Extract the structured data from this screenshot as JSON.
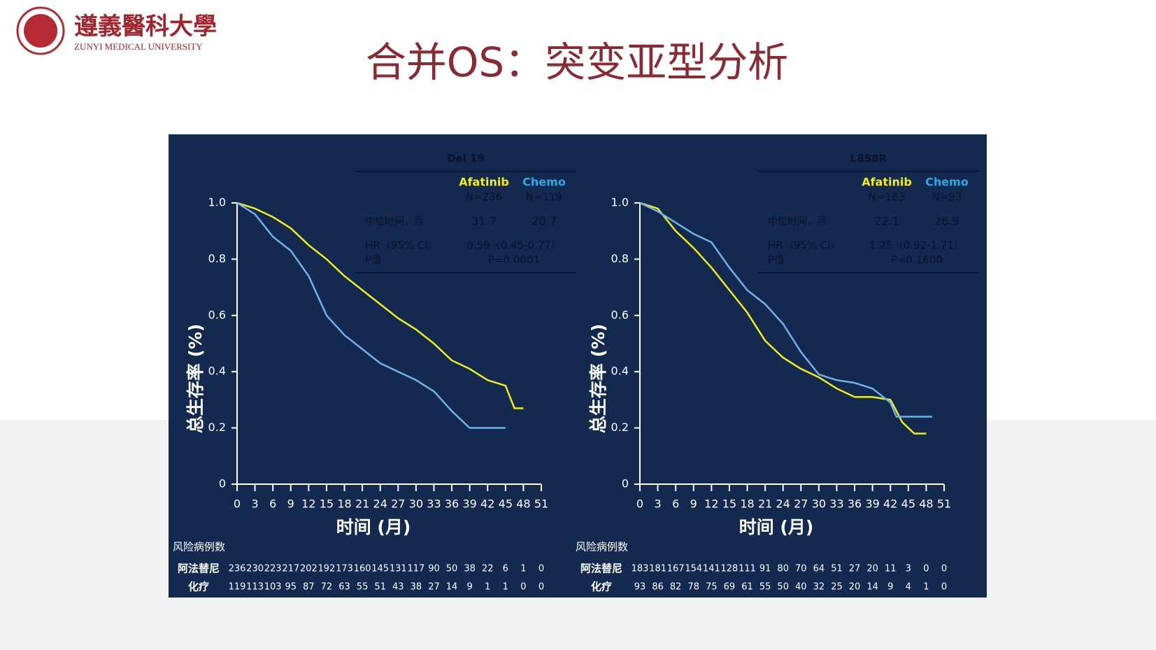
{
  "header": {
    "logo_cn": "遵義醫科大學",
    "logo_en": "ZUNYI MEDICAL UNIVERSITY",
    "title": "合并OS：突变亚型分析"
  },
  "chart_data": [
    {
      "type": "line",
      "title": "Del 19",
      "x_label": "时间 (月)",
      "y_label": "总生存率 (%)",
      "xlim": [
        0,
        51
      ],
      "xticks": [
        0,
        3,
        6,
        9,
        12,
        15,
        18,
        21,
        24,
        27,
        30,
        33,
        36,
        39,
        42,
        45,
        48,
        51
      ],
      "ylim": [
        0,
        1
      ],
      "yticks": [
        0,
        0.2,
        0.4,
        0.6,
        0.8,
        {
          "value": 1,
          "label": "1.0"
        }
      ],
      "series": [
        {
          "name": "Afatinib",
          "color": "#f2ec1c",
          "n_label": "N=236",
          "x": [
            0,
            3,
            6,
            9,
            12,
            15,
            18,
            21,
            24,
            27,
            30,
            33,
            36,
            39,
            42,
            45,
            46.5,
            48
          ],
          "values": [
            1,
            0.98,
            0.95,
            0.91,
            0.85,
            0.8,
            0.74,
            0.69,
            0.64,
            0.59,
            0.55,
            0.5,
            0.44,
            0.41,
            0.37,
            0.35,
            0.27,
            0.27
          ]
        },
        {
          "name": "Chemo",
          "color": "#70b2ea",
          "n_label": "N=119",
          "x": [
            0,
            3,
            6,
            9,
            12,
            15,
            18,
            21,
            24,
            27,
            30,
            33,
            36,
            39,
            42,
            45
          ],
          "values": [
            1,
            0.96,
            0.88,
            0.83,
            0.74,
            0.6,
            0.53,
            0.48,
            0.43,
            0.4,
            0.37,
            0.33,
            0.26,
            0.2,
            0.2,
            0.2
          ]
        }
      ],
      "stats": {
        "rows": [
          {
            "label": "中位时间，月",
            "values": [
              31.7,
              20.7
            ]
          }
        ],
        "hr_label": "HR（95% CI）",
        "hr": "0.59（0.45-0.77）",
        "p_label": "P值",
        "p": "P=0.0001"
      },
      "risk_table": {
        "title": "风险病例数",
        "rows": [
          {
            "label": "阿法替尼",
            "values": [
              236,
              230,
              223,
              217,
              202,
              192,
              173,
              160,
              145,
              131,
              117,
              90,
              50,
              38,
              22,
              6,
              1,
              0
            ]
          },
          {
            "label": "化疗",
            "values": [
              119,
              113,
              103,
              95,
              87,
              72,
              63,
              55,
              51,
              43,
              38,
              27,
              14,
              9,
              1,
              1,
              0,
              0
            ]
          }
        ]
      }
    },
    {
      "type": "line",
      "title": "L858R",
      "x_label": "时间 (月)",
      "y_label": "总生存率 (%)",
      "xlim": [
        0,
        51
      ],
      "xticks": [
        0,
        3,
        6,
        9,
        12,
        15,
        18,
        21,
        24,
        27,
        30,
        33,
        36,
        39,
        42,
        45,
        48,
        51
      ],
      "ylim": [
        0,
        1
      ],
      "yticks": [
        0,
        0.2,
        0.4,
        0.6,
        0.8,
        {
          "value": 1,
          "label": "1.0"
        }
      ],
      "series": [
        {
          "name": "Afatinib",
          "color": "#f2ec1c",
          "n_label": "N=183",
          "x": [
            0,
            3,
            6,
            9,
            12,
            15,
            18,
            21,
            24,
            27,
            30,
            33,
            36,
            39,
            42,
            44,
            46,
            48
          ],
          "values": [
            1,
            0.98,
            0.9,
            0.84,
            0.77,
            0.69,
            0.61,
            0.51,
            0.45,
            0.41,
            0.38,
            0.34,
            0.31,
            0.31,
            0.3,
            0.22,
            0.18,
            0.18
          ]
        },
        {
          "name": "Chemo",
          "color": "#70b2ea",
          "n_label": "N=93",
          "x": [
            0,
            3,
            6,
            9,
            12,
            15,
            18,
            21,
            24,
            27,
            30,
            33,
            36,
            39,
            42,
            43,
            45,
            49
          ],
          "values": [
            1,
            0.97,
            0.93,
            0.89,
            0.86,
            0.77,
            0.69,
            0.64,
            0.57,
            0.47,
            0.39,
            0.37,
            0.36,
            0.34,
            0.29,
            0.24,
            0.24,
            0.24
          ]
        }
      ],
      "stats": {
        "rows": [
          {
            "label": "中位时间，月",
            "values": [
              22.1,
              26.9
            ]
          }
        ],
        "hr_label": "HR（95% CI）",
        "hr": "1.25（0.92-1.71）",
        "p_label": "P值",
        "p": "P=0.1600"
      },
      "risk_table": {
        "title": "风险病例数",
        "rows": [
          {
            "label": "阿法替尼",
            "values": [
              183,
              181,
              167,
              154,
              141,
              128,
              111,
              91,
              80,
              70,
              64,
              51,
              27,
              20,
              11,
              3,
              0,
              0
            ]
          },
          {
            "label": "化疗",
            "values": [
              93,
              86,
              82,
              78,
              75,
              69,
              61,
              55,
              50,
              40,
              32,
              25,
              20,
              14,
              9,
              4,
              1,
              0
            ]
          }
        ]
      }
    }
  ]
}
